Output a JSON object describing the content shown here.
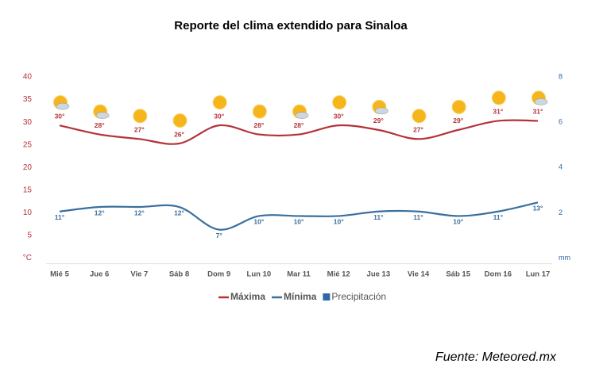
{
  "chart_data": {
    "type": "line",
    "title": "Reporte del clima extendido para Sinaloa",
    "source": "Fuente: Meteored.mx",
    "categories": [
      "Mié 5",
      "Jue 6",
      "Vie 7",
      "Sáb 8",
      "Dom 9",
      "Lun 10",
      "Mar 11",
      "Mié 12",
      "Jue 13",
      "Vie 14",
      "Sáb 15",
      "Dom 16",
      "Lun 17"
    ],
    "series": [
      {
        "name": "Máxima",
        "color": "#b5323a",
        "values": [
          30,
          28,
          27,
          26,
          30,
          28,
          28,
          30,
          29,
          27,
          29,
          31,
          31
        ],
        "value_labels": [
          "30°",
          "28°",
          "27°",
          "26°",
          "30°",
          "28°",
          "28°",
          "30°",
          "29°",
          "27°",
          "29°",
          "31°",
          "31°"
        ]
      },
      {
        "name": "Mínima",
        "color": "#3a6f9e",
        "values": [
          11,
          12,
          12,
          12,
          7,
          10,
          10,
          10,
          11,
          11,
          10,
          11,
          13
        ],
        "value_labels": [
          "11°",
          "12°",
          "12°",
          "12°",
          "7°",
          "10°",
          "10°",
          "10°",
          "11°",
          "11°",
          "10°",
          "11°",
          "13°"
        ]
      },
      {
        "name": "Precipitación",
        "color": "#2e68a8",
        "axis": "y2",
        "values": [
          null,
          null,
          null,
          null,
          null,
          null,
          null,
          null,
          null,
          null,
          null,
          null,
          null
        ]
      }
    ],
    "ylim": [
      0,
      40
    ],
    "yticks": [
      {
        "value": 0,
        "label": "°C"
      },
      5,
      10,
      15,
      20,
      25,
      30,
      35,
      40
    ],
    "y2lim": [
      0,
      8
    ],
    "y2ticks": [
      {
        "value": 0,
        "label": "mm"
      },
      2,
      4,
      6,
      8
    ],
    "grid": false
  }
}
